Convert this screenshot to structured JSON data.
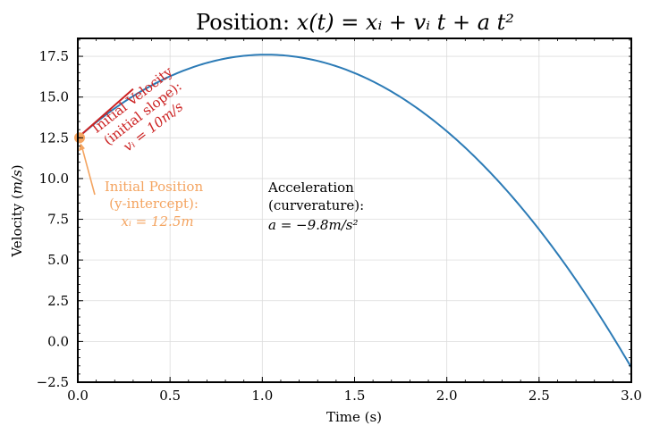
{
  "chart_data": {
    "type": "line",
    "title_prefix": "Position: ",
    "title_math": "x(t) = xᵢ + vᵢ t + a t²",
    "xlabel": "Time (s)",
    "ylabel_prefix": "Velocity (",
    "ylabel_math": "m/s",
    "ylabel_suffix": ")",
    "xlim": [
      0,
      3.0
    ],
    "ylim": [
      -2.5,
      18.6
    ],
    "x_ticks": [
      "0.0",
      "0.5",
      "1.0",
      "1.5",
      "2.0",
      "2.5",
      "3.0"
    ],
    "y_ticks": [
      "−2.5",
      "0.0",
      "2.5",
      "5.0",
      "7.5",
      "10.0",
      "12.5",
      "15.0",
      "17.5"
    ],
    "grid": true,
    "series": [
      {
        "x_start": 0,
        "x_end": 3.0,
        "x0": 12.5,
        "v0": 10,
        "a": -4.9,
        "color": "#2c7bb6"
      }
    ],
    "start_point": {
      "x": 0,
      "y": 12.5,
      "color": "#f4a460"
    },
    "velocity_segment": {
      "x": [
        0,
        0.3
      ],
      "y": [
        12.5,
        15.5
      ],
      "color": "#cc2222"
    },
    "annotations": {
      "velocity": {
        "line1": "Initial Velocity",
        "line2": "(initial slope):",
        "line3": "vᵢ = 10m/s",
        "color": "#cc2222"
      },
      "position": {
        "line1": "Initial Position",
        "line2": "(y-intercept):",
        "line3": "xᵢ = 12.5m",
        "color": "#f4a460"
      },
      "acceleration": {
        "line1": "Acceleration",
        "line2": "(curverature):",
        "line3": "a = −9.8m/s²",
        "color": "#000000"
      }
    }
  }
}
